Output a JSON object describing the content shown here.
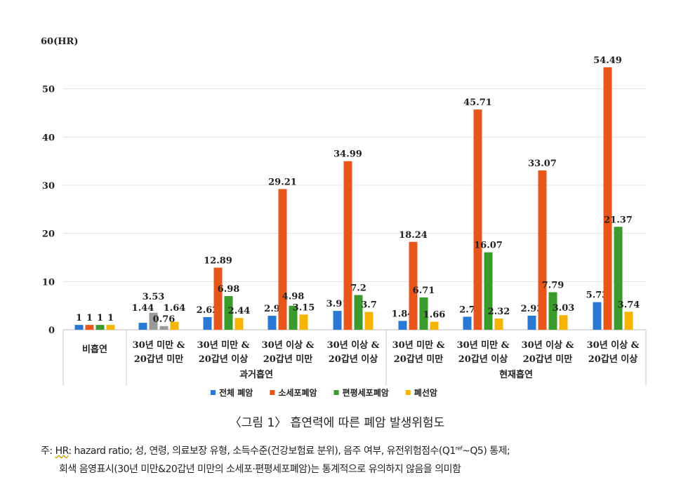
{
  "chart_data": {
    "type": "bar",
    "ylabel": "60(HR)",
    "ylim": [
      0,
      60
    ],
    "yticks": [
      0,
      10,
      20,
      30,
      40,
      50
    ],
    "grid": true,
    "categories": [
      "비흡연",
      "30년 미만 & 20갑년 미만",
      "30년 미만 & 20갑년 이상",
      "30년 이상 & 20갑년 미만",
      "30년 이상 & 20갑년 이상",
      "30년 미만 & 20갑년 미만",
      "30년 미만 & 20갑년 이상",
      "30년 이상 & 20갑년 미만",
      "30년 이상 & 20갑년 이상"
    ],
    "category_lines": [
      [
        "비흡연"
      ],
      [
        "30년 미만 &",
        "20갑년 미만"
      ],
      [
        "30년 미만 &",
        "20갑년 이상"
      ],
      [
        "30년 이상 &",
        "20갑년 미만"
      ],
      [
        "30년 이상 &",
        "20갑년 이상"
      ],
      [
        "30년 미만 &",
        "20갑년 미만"
      ],
      [
        "30년 미만 &",
        "20갑년 이상"
      ],
      [
        "30년 이상 &",
        "20갑년 미만"
      ],
      [
        "30년 이상 &",
        "20갑년 이상"
      ]
    ],
    "groups": [
      {
        "label": "과거흡연",
        "from": 1,
        "to": 4
      },
      {
        "label": "현재흡연",
        "from": 5,
        "to": 8
      }
    ],
    "series": [
      {
        "name": "전체 폐암",
        "color": "#2a78d4",
        "values": [
          1,
          1.44,
          2.62,
          2.9,
          3.91,
          1.84,
          2.7,
          2.93,
          5.73
        ],
        "labels": [
          "1",
          "1.44",
          "2.62",
          "2.9",
          "3.91",
          "1.84",
          "2.7",
          "2.93",
          "5.73"
        ]
      },
      {
        "name": "소세포폐암",
        "color": "#e8561a",
        "values": [
          1,
          3.53,
          12.89,
          29.21,
          34.99,
          18.24,
          45.71,
          33.07,
          54.49
        ],
        "labels": [
          "1",
          "3.53",
          "12.89",
          "29.21",
          "34.99",
          "18.24",
          "45.71",
          "33.07",
          "54.49"
        ]
      },
      {
        "name": "편평세포폐암",
        "color": "#3a9a2c",
        "values": [
          1,
          0.76,
          6.98,
          4.98,
          7.2,
          6.71,
          16.07,
          7.79,
          21.37
        ],
        "labels": [
          "1",
          "0.76",
          "6.98",
          "4.98",
          "7.2",
          "6.71",
          "16.07",
          "7.79",
          "21.37"
        ]
      },
      {
        "name": "폐선암",
        "color": "#f5b400",
        "values": [
          1,
          1.64,
          2.44,
          3.15,
          3.7,
          1.66,
          2.32,
          3.03,
          3.74
        ],
        "labels": [
          "1",
          "1.64",
          "2.44",
          "3.15",
          "3.7",
          "1.66",
          "2.32",
          "3.03",
          "3.74"
        ]
      }
    ],
    "not_significant_color": "#9a9a9a",
    "not_significant": [
      {
        "series": 1,
        "category": 1
      },
      {
        "series": 2,
        "category": 1
      }
    ],
    "legend_position": "bottom"
  },
  "caption": "〈그림 1〉 흡연력에 따른 폐암 발생위험도",
  "note": {
    "line1_prefix": "주: ",
    "line1_hr": "HR",
    "line1_main": ": hazard ratio; 성, 연령, 의료보장 유형, 소득수준(건강보험료 분위), 음주 여부, 유전위험점수(Q1",
    "line1_sup": "ref",
    "line1_end": "~Q5) 통제;",
    "line2": "회색 음영표시(30년 미만&20갑년 미만의 소세포·편평세포폐암)는 통계적으로 유의하지 않음을 의미함"
  }
}
